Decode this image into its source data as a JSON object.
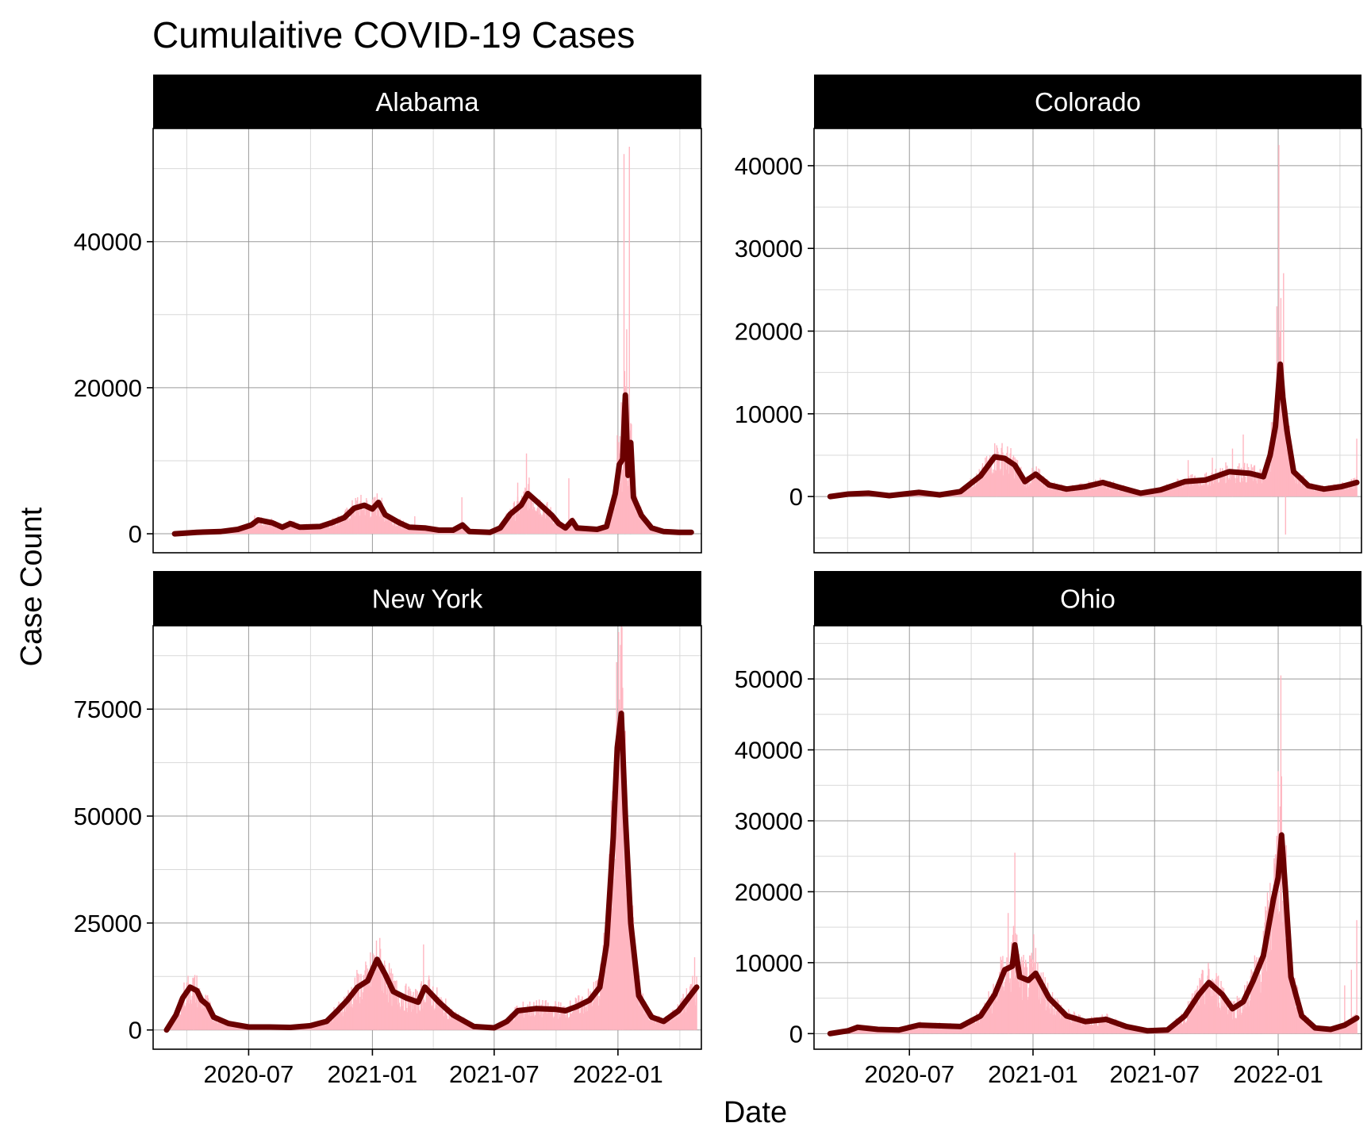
{
  "figure": {
    "title": "Cumulaitive COVID-19 Cases",
    "xlabel": "Date",
    "ylabel": "Case Count",
    "x_tick_labels": [
      "2020-07",
      "2021-01",
      "2021-07",
      "2022-01"
    ]
  },
  "colors": {
    "strip_bg": "#000000",
    "strip_text": "#ffffff",
    "bar": "#ffb6c1",
    "line": "#6b0000",
    "grid_major": "#9a9a9a",
    "grid_minor": "#d9d9d9",
    "panel_border": "#000000"
  },
  "chart_data": [
    {
      "type": "line",
      "facet": "Alabama",
      "x_range": [
        "2020-02-10",
        "2022-05-05"
      ],
      "x_ticks": [
        "2020-07-01",
        "2021-01-01",
        "2021-07-01",
        "2022-01-01"
      ],
      "ylim": [
        -2600,
        55500
      ],
      "y_ticks": [
        0,
        20000,
        40000
      ],
      "series": [
        {
          "type": "line",
          "points": [
            [
              "2020-03-13",
              0
            ],
            [
              "2020-04-15",
              200
            ],
            [
              "2020-05-20",
              300
            ],
            [
              "2020-06-15",
              600
            ],
            [
              "2020-07-05",
              1200
            ],
            [
              "2020-07-15",
              1900
            ],
            [
              "2020-08-05",
              1500
            ],
            [
              "2020-08-20",
              900
            ],
            [
              "2020-09-01",
              1400
            ],
            [
              "2020-09-15",
              900
            ],
            [
              "2020-10-15",
              1000
            ],
            [
              "2020-11-01",
              1500
            ],
            [
              "2020-11-20",
              2200
            ],
            [
              "2020-12-05",
              3500
            ],
            [
              "2020-12-20",
              3900
            ],
            [
              "2021-01-01",
              3400
            ],
            [
              "2021-01-10",
              4300
            ],
            [
              "2021-01-20",
              2600
            ],
            [
              "2021-02-10",
              1500
            ],
            [
              "2021-02-25",
              900
            ],
            [
              "2021-03-20",
              800
            ],
            [
              "2021-04-10",
              500
            ],
            [
              "2021-05-01",
              500
            ],
            [
              "2021-05-15",
              1200
            ],
            [
              "2021-05-25",
              300
            ],
            [
              "2021-06-25",
              200
            ],
            [
              "2021-07-10",
              800
            ],
            [
              "2021-07-25",
              2700
            ],
            [
              "2021-08-10",
              3900
            ],
            [
              "2021-08-20",
              5500
            ],
            [
              "2021-09-05",
              4200
            ],
            [
              "2021-09-25",
              2500
            ],
            [
              "2021-10-05",
              1400
            ],
            [
              "2021-10-15",
              800
            ],
            [
              "2021-10-25",
              1800
            ],
            [
              "2021-11-01",
              800
            ],
            [
              "2021-12-01",
              600
            ],
            [
              "2021-12-15",
              1000
            ],
            [
              "2021-12-28",
              5500
            ],
            [
              "2022-01-03",
              9500
            ],
            [
              "2022-01-08",
              10200
            ],
            [
              "2022-01-12",
              19000
            ],
            [
              "2022-01-16",
              8000
            ],
            [
              "2022-01-20",
              12500
            ],
            [
              "2022-01-24",
              5000
            ],
            [
              "2022-02-05",
              2500
            ],
            [
              "2022-02-20",
              800
            ],
            [
              "2022-03-10",
              300
            ],
            [
              "2022-04-01",
              200
            ],
            [
              "2022-04-20",
              200
            ]
          ]
        },
        {
          "type": "bar_spikes",
          "points": [
            [
              "2020-07-10",
              2500
            ],
            [
              "2020-12-10",
              5000
            ],
            [
              "2021-03-05",
              2400
            ],
            [
              "2021-05-14",
              5000
            ],
            [
              "2021-08-05",
              7000
            ],
            [
              "2021-08-18",
              11000
            ],
            [
              "2021-10-20",
              7600
            ],
            [
              "2021-12-31",
              13500
            ],
            [
              "2022-01-06",
              18000
            ],
            [
              "2022-01-10",
              52000
            ],
            [
              "2022-01-14",
              28000
            ],
            [
              "2022-01-18",
              53000
            ],
            [
              "2022-01-21",
              15000
            ]
          ]
        }
      ]
    },
    {
      "type": "line",
      "facet": "Colorado",
      "x_range": [
        "2020-02-10",
        "2022-05-05"
      ],
      "x_ticks": [
        "2020-07-01",
        "2021-01-01",
        "2021-07-01",
        "2022-01-01"
      ],
      "ylim": [
        -6800,
        44500
      ],
      "y_ticks": [
        0,
        10000,
        20000,
        30000,
        40000
      ],
      "series": [
        {
          "type": "line",
          "points": [
            [
              "2020-03-05",
              0
            ],
            [
              "2020-04-01",
              300
            ],
            [
              "2020-05-01",
              400
            ],
            [
              "2020-06-01",
              100
            ],
            [
              "2020-07-15",
              500
            ],
            [
              "2020-08-15",
              200
            ],
            [
              "2020-09-15",
              600
            ],
            [
              "2020-10-15",
              2500
            ],
            [
              "2020-11-05",
              4800
            ],
            [
              "2020-11-20",
              4600
            ],
            [
              "2020-12-05",
              3800
            ],
            [
              "2020-12-20",
              1800
            ],
            [
              "2021-01-05",
              2700
            ],
            [
              "2021-01-25",
              1400
            ],
            [
              "2021-02-20",
              900
            ],
            [
              "2021-03-20",
              1200
            ],
            [
              "2021-04-15",
              1700
            ],
            [
              "2021-05-10",
              1100
            ],
            [
              "2021-06-10",
              400
            ],
            [
              "2021-07-10",
              800
            ],
            [
              "2021-08-15",
              1800
            ],
            [
              "2021-09-15",
              2000
            ],
            [
              "2021-10-20",
              3000
            ],
            [
              "2021-11-20",
              2800
            ],
            [
              "2021-12-10",
              2400
            ],
            [
              "2021-12-20",
              5000
            ],
            [
              "2021-12-28",
              8500
            ],
            [
              "2022-01-04",
              16000
            ],
            [
              "2022-01-08",
              12000
            ],
            [
              "2022-01-14",
              8000
            ],
            [
              "2022-01-24",
              3000
            ],
            [
              "2022-02-15",
              1300
            ],
            [
              "2022-03-10",
              900
            ],
            [
              "2022-04-05",
              1200
            ],
            [
              "2022-04-28",
              1700
            ]
          ]
        },
        {
          "type": "bar_spikes",
          "points": [
            [
              "2020-11-08",
              6200
            ],
            [
              "2021-08-20",
              4400
            ],
            [
              "2021-09-25",
              4700
            ],
            [
              "2021-10-25",
              5800
            ],
            [
              "2021-11-10",
              7500
            ],
            [
              "2021-12-22",
              9000
            ],
            [
              "2021-12-30",
              23000
            ],
            [
              "2022-01-02",
              42500
            ],
            [
              "2022-01-05",
              24000
            ],
            [
              "2022-01-09",
              27000
            ],
            [
              "2022-01-12",
              -4600
            ],
            [
              "2022-04-28",
              7000
            ]
          ]
        }
      ]
    },
    {
      "type": "line",
      "facet": "New York",
      "x_range": [
        "2020-02-10",
        "2022-05-05"
      ],
      "x_ticks": [
        "2020-07-01",
        "2021-01-01",
        "2021-07-01",
        "2022-01-01"
      ],
      "ylim": [
        -4500,
        94500
      ],
      "y_ticks": [
        0,
        25000,
        50000,
        75000
      ],
      "series": [
        {
          "type": "line",
          "points": [
            [
              "2020-03-01",
              0
            ],
            [
              "2020-03-15",
              3500
            ],
            [
              "2020-03-25",
              7500
            ],
            [
              "2020-04-05",
              10000
            ],
            [
              "2020-04-15",
              9200
            ],
            [
              "2020-04-22",
              7000
            ],
            [
              "2020-05-01",
              5800
            ],
            [
              "2020-05-10",
              3000
            ],
            [
              "2020-06-01",
              1500
            ],
            [
              "2020-07-01",
              700
            ],
            [
              "2020-08-01",
              700
            ],
            [
              "2020-09-01",
              600
            ],
            [
              "2020-10-01",
              1000
            ],
            [
              "2020-10-25",
              2000
            ],
            [
              "2020-11-10",
              4500
            ],
            [
              "2020-11-25",
              7000
            ],
            [
              "2020-12-10",
              10000
            ],
            [
              "2020-12-25",
              11500
            ],
            [
              "2021-01-08",
              16500
            ],
            [
              "2021-01-20",
              13000
            ],
            [
              "2021-02-01",
              9000
            ],
            [
              "2021-02-20",
              7500
            ],
            [
              "2021-03-10",
              6500
            ],
            [
              "2021-03-20",
              10000
            ],
            [
              "2021-04-10",
              6500
            ],
            [
              "2021-05-01",
              3500
            ],
            [
              "2021-06-01",
              800
            ],
            [
              "2021-07-01",
              500
            ],
            [
              "2021-07-20",
              2000
            ],
            [
              "2021-08-05",
              4500
            ],
            [
              "2021-09-01",
              5000
            ],
            [
              "2021-10-01",
              4800
            ],
            [
              "2021-10-15",
              4500
            ],
            [
              "2021-11-01",
              5500
            ],
            [
              "2021-11-20",
              7000
            ],
            [
              "2021-12-05",
              10000
            ],
            [
              "2021-12-15",
              20000
            ],
            [
              "2021-12-25",
              45000
            ],
            [
              "2021-12-31",
              66000
            ],
            [
              "2022-01-06",
              74000
            ],
            [
              "2022-01-12",
              50000
            ],
            [
              "2022-01-20",
              25000
            ],
            [
              "2022-02-01",
              8000
            ],
            [
              "2022-02-20",
              3000
            ],
            [
              "2022-03-10",
              2000
            ],
            [
              "2022-04-01",
              4500
            ],
            [
              "2022-04-28",
              10000
            ]
          ]
        },
        {
          "type": "bar_spikes",
          "points": [
            [
              "2020-04-10",
              12000
            ],
            [
              "2021-01-09",
              17000
            ],
            [
              "2021-03-18",
              20000
            ],
            [
              "2021-12-25",
              55000
            ],
            [
              "2021-12-30",
              86000
            ],
            [
              "2022-01-05",
              90000
            ],
            [
              "2022-01-08",
              80000
            ],
            [
              "2022-04-25",
              17000
            ]
          ]
        }
      ]
    },
    {
      "type": "line",
      "facet": "Ohio",
      "x_range": [
        "2020-02-10",
        "2022-05-05"
      ],
      "x_ticks": [
        "2020-07-01",
        "2021-01-01",
        "2021-07-01",
        "2022-01-01"
      ],
      "ylim": [
        -2200,
        57500
      ],
      "y_ticks": [
        0,
        10000,
        20000,
        30000,
        40000,
        50000
      ],
      "series": [
        {
          "type": "line",
          "points": [
            [
              "2020-03-05",
              0
            ],
            [
              "2020-04-01",
              400
            ],
            [
              "2020-04-15",
              900
            ],
            [
              "2020-05-15",
              600
            ],
            [
              "2020-06-15",
              500
            ],
            [
              "2020-07-15",
              1200
            ],
            [
              "2020-08-15",
              1100
            ],
            [
              "2020-09-15",
              1000
            ],
            [
              "2020-10-15",
              2500
            ],
            [
              "2020-11-05",
              5500
            ],
            [
              "2020-11-20",
              9000
            ],
            [
              "2020-12-01",
              9500
            ],
            [
              "2020-12-05",
              12500
            ],
            [
              "2020-12-12",
              8000
            ],
            [
              "2020-12-25",
              7500
            ],
            [
              "2021-01-05",
              8500
            ],
            [
              "2021-01-25",
              5000
            ],
            [
              "2021-02-20",
              2500
            ],
            [
              "2021-03-20",
              1700
            ],
            [
              "2021-04-20",
              2000
            ],
            [
              "2021-05-20",
              1000
            ],
            [
              "2021-06-20",
              400
            ],
            [
              "2021-07-20",
              500
            ],
            [
              "2021-08-15",
              2500
            ],
            [
              "2021-09-05",
              5500
            ],
            [
              "2021-09-20",
              7200
            ],
            [
              "2021-10-10",
              5500
            ],
            [
              "2021-10-25",
              3500
            ],
            [
              "2021-11-10",
              4500
            ],
            [
              "2021-11-25",
              7500
            ],
            [
              "2021-12-10",
              11000
            ],
            [
              "2021-12-25",
              19000
            ],
            [
              "2022-01-01",
              22000
            ],
            [
              "2022-01-06",
              28000
            ],
            [
              "2022-01-12",
              20000
            ],
            [
              "2022-01-20",
              8000
            ],
            [
              "2022-02-05",
              2500
            ],
            [
              "2022-02-25",
              800
            ],
            [
              "2022-03-20",
              600
            ],
            [
              "2022-04-10",
              1200
            ],
            [
              "2022-04-28",
              2200
            ]
          ]
        },
        {
          "type": "bar_spikes",
          "points": [
            [
              "2020-11-25",
              17000
            ],
            [
              "2020-12-05",
              25500
            ],
            [
              "2021-01-02",
              14000
            ],
            [
              "2021-09-10",
              9000
            ],
            [
              "2021-12-25",
              21000
            ],
            [
              "2022-01-01",
              37000
            ],
            [
              "2022-01-05",
              50500
            ],
            [
              "2022-04-10",
              6800
            ],
            [
              "2022-04-20",
              9000
            ],
            [
              "2022-04-28",
              16000
            ]
          ]
        }
      ]
    }
  ]
}
